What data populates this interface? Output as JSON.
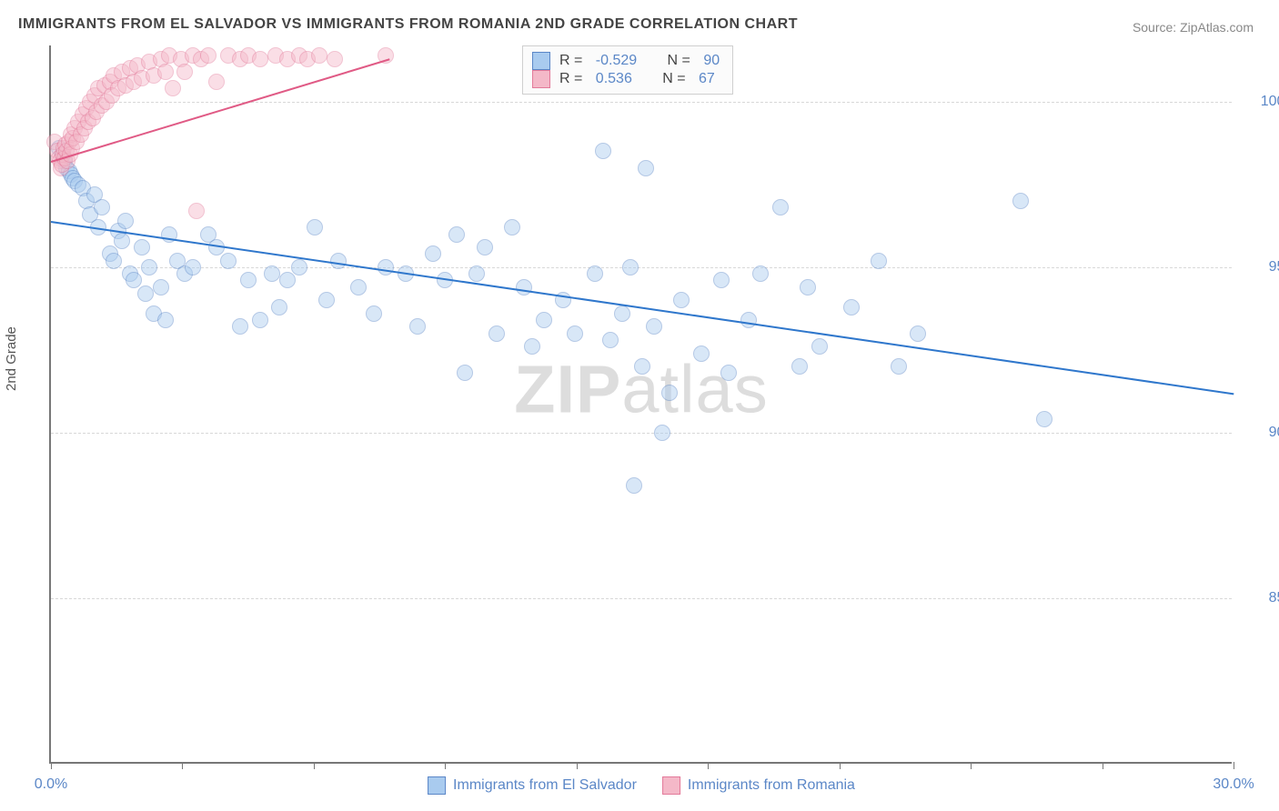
{
  "title": "IMMIGRANTS FROM EL SALVADOR VS IMMIGRANTS FROM ROMANIA 2ND GRADE CORRELATION CHART",
  "source": "Source: ZipAtlas.com",
  "ylabel": "2nd Grade",
  "watermark_bold": "ZIP",
  "watermark_light": "atlas",
  "chart": {
    "type": "scatter",
    "xlim": [
      0,
      30
    ],
    "ylim": [
      80,
      101.7
    ],
    "plot_bg": "#ffffff",
    "grid_color": "#d8d8d8",
    "axis_color": "#777777",
    "yticks": [
      {
        "v": 100,
        "label": "100.0%"
      },
      {
        "v": 95,
        "label": "95.0%"
      },
      {
        "v": 90,
        "label": "90.0%"
      },
      {
        "v": 85,
        "label": "85.0%"
      }
    ],
    "xtick_major": [
      0,
      30
    ],
    "xtick_minor": [
      3.33,
      6.67,
      10,
      13.33,
      16.67,
      20,
      23.33,
      26.67
    ],
    "xtick_labels": [
      {
        "v": 0,
        "label": "0.0%"
      },
      {
        "v": 30,
        "label": "30.0%"
      }
    ],
    "marker_radius": 9,
    "marker_opacity": 0.45,
    "series": [
      {
        "name": "Immigrants from El Salvador",
        "color_fill": "#a9cbef",
        "color_stroke": "#5b87c7",
        "r_label": "R = ",
        "r_value": "-0.529",
        "n_label": "N = ",
        "n_value": "90",
        "trend": {
          "x1": 0,
          "y1": 96.4,
          "x2": 30,
          "y2": 91.2,
          "color": "#2f77cc",
          "width": 2
        },
        "points": [
          [
            0.2,
            98.6
          ],
          [
            0.3,
            98.4
          ],
          [
            0.35,
            98.2
          ],
          [
            0.4,
            98.0
          ],
          [
            0.45,
            97.9
          ],
          [
            0.5,
            97.8
          ],
          [
            0.55,
            97.7
          ],
          [
            0.6,
            97.6
          ],
          [
            0.7,
            97.5
          ],
          [
            0.8,
            97.4
          ],
          [
            0.9,
            97.0
          ],
          [
            1.0,
            96.6
          ],
          [
            1.1,
            97.2
          ],
          [
            1.2,
            96.2
          ],
          [
            1.3,
            96.8
          ],
          [
            1.5,
            95.4
          ],
          [
            1.6,
            95.2
          ],
          [
            1.7,
            96.1
          ],
          [
            1.8,
            95.8
          ],
          [
            1.9,
            96.4
          ],
          [
            2.0,
            94.8
          ],
          [
            2.1,
            94.6
          ],
          [
            2.3,
            95.6
          ],
          [
            2.4,
            94.2
          ],
          [
            2.5,
            95.0
          ],
          [
            2.6,
            93.6
          ],
          [
            2.8,
            94.4
          ],
          [
            2.9,
            93.4
          ],
          [
            3.0,
            96.0
          ],
          [
            3.2,
            95.2
          ],
          [
            3.4,
            94.8
          ],
          [
            3.6,
            95.0
          ],
          [
            4.0,
            96.0
          ],
          [
            4.2,
            95.6
          ],
          [
            4.5,
            95.2
          ],
          [
            4.8,
            93.2
          ],
          [
            5.0,
            94.6
          ],
          [
            5.3,
            93.4
          ],
          [
            5.6,
            94.8
          ],
          [
            5.8,
            93.8
          ],
          [
            6.0,
            94.6
          ],
          [
            6.3,
            95.0
          ],
          [
            6.7,
            96.2
          ],
          [
            7.0,
            94.0
          ],
          [
            7.3,
            95.2
          ],
          [
            7.8,
            94.4
          ],
          [
            8.2,
            93.6
          ],
          [
            8.5,
            95.0
          ],
          [
            9.0,
            94.8
          ],
          [
            9.3,
            93.2
          ],
          [
            9.7,
            95.4
          ],
          [
            10.0,
            94.6
          ],
          [
            10.3,
            96.0
          ],
          [
            10.5,
            91.8
          ],
          [
            10.8,
            94.8
          ],
          [
            11.0,
            95.6
          ],
          [
            11.3,
            93.0
          ],
          [
            11.7,
            96.2
          ],
          [
            12.0,
            94.4
          ],
          [
            12.2,
            92.6
          ],
          [
            12.5,
            93.4
          ],
          [
            13.0,
            94.0
          ],
          [
            13.3,
            93.0
          ],
          [
            13.8,
            94.8
          ],
          [
            14.0,
            98.5
          ],
          [
            14.2,
            92.8
          ],
          [
            14.5,
            93.6
          ],
          [
            14.7,
            95.0
          ],
          [
            14.8,
            88.4
          ],
          [
            15.0,
            92.0
          ],
          [
            15.1,
            98.0
          ],
          [
            15.3,
            93.2
          ],
          [
            15.5,
            90.0
          ],
          [
            15.7,
            91.2
          ],
          [
            16.0,
            94.0
          ],
          [
            16.5,
            92.4
          ],
          [
            17.0,
            94.6
          ],
          [
            17.2,
            91.8
          ],
          [
            17.7,
            93.4
          ],
          [
            18.0,
            94.8
          ],
          [
            18.5,
            96.8
          ],
          [
            19.0,
            92.0
          ],
          [
            19.2,
            94.4
          ],
          [
            19.5,
            92.6
          ],
          [
            20.3,
            93.8
          ],
          [
            21.0,
            95.2
          ],
          [
            21.5,
            92.0
          ],
          [
            22.0,
            93.0
          ],
          [
            24.6,
            97.0
          ],
          [
            25.2,
            90.4
          ]
        ]
      },
      {
        "name": "Immigrants from Romania",
        "color_fill": "#f4b8c8",
        "color_stroke": "#e37a9a",
        "r_label": "R = ",
        "r_value": "0.536",
        "n_label": "N = ",
        "n_value": "67",
        "trend": {
          "x1": 0,
          "y1": 98.2,
          "x2": 8.6,
          "y2": 101.3,
          "color": "#e05a85",
          "width": 2
        },
        "points": [
          [
            0.1,
            98.8
          ],
          [
            0.15,
            98.5
          ],
          [
            0.2,
            98.3
          ],
          [
            0.22,
            98.2
          ],
          [
            0.25,
            98.0
          ],
          [
            0.28,
            98.1
          ],
          [
            0.3,
            98.4
          ],
          [
            0.32,
            98.6
          ],
          [
            0.35,
            98.3
          ],
          [
            0.38,
            98.7
          ],
          [
            0.4,
            98.5
          ],
          [
            0.42,
            98.2
          ],
          [
            0.45,
            98.8
          ],
          [
            0.48,
            98.4
          ],
          [
            0.5,
            99.0
          ],
          [
            0.52,
            98.6
          ],
          [
            0.55,
            98.9
          ],
          [
            0.6,
            99.2
          ],
          [
            0.65,
            98.8
          ],
          [
            0.7,
            99.4
          ],
          [
            0.75,
            99.0
          ],
          [
            0.8,
            99.6
          ],
          [
            0.85,
            99.2
          ],
          [
            0.9,
            99.8
          ],
          [
            0.95,
            99.4
          ],
          [
            1.0,
            100.0
          ],
          [
            1.05,
            99.5
          ],
          [
            1.1,
            100.2
          ],
          [
            1.15,
            99.7
          ],
          [
            1.2,
            100.4
          ],
          [
            1.3,
            99.9
          ],
          [
            1.35,
            100.5
          ],
          [
            1.4,
            100.0
          ],
          [
            1.5,
            100.6
          ],
          [
            1.55,
            100.2
          ],
          [
            1.6,
            100.8
          ],
          [
            1.7,
            100.4
          ],
          [
            1.8,
            100.9
          ],
          [
            1.9,
            100.5
          ],
          [
            2.0,
            101.0
          ],
          [
            2.1,
            100.6
          ],
          [
            2.2,
            101.1
          ],
          [
            2.3,
            100.7
          ],
          [
            2.5,
            101.2
          ],
          [
            2.6,
            100.8
          ],
          [
            2.8,
            101.3
          ],
          [
            2.9,
            100.9
          ],
          [
            3.0,
            101.4
          ],
          [
            3.1,
            100.4
          ],
          [
            3.3,
            101.3
          ],
          [
            3.4,
            100.9
          ],
          [
            3.6,
            101.4
          ],
          [
            3.7,
            96.7
          ],
          [
            3.8,
            101.3
          ],
          [
            4.0,
            101.4
          ],
          [
            4.2,
            100.6
          ],
          [
            4.5,
            101.4
          ],
          [
            4.8,
            101.3
          ],
          [
            5.0,
            101.4
          ],
          [
            5.3,
            101.3
          ],
          [
            5.7,
            101.4
          ],
          [
            6.0,
            101.3
          ],
          [
            6.3,
            101.4
          ],
          [
            6.5,
            101.3
          ],
          [
            6.8,
            101.4
          ],
          [
            7.2,
            101.3
          ],
          [
            8.5,
            101.4
          ]
        ]
      }
    ]
  }
}
